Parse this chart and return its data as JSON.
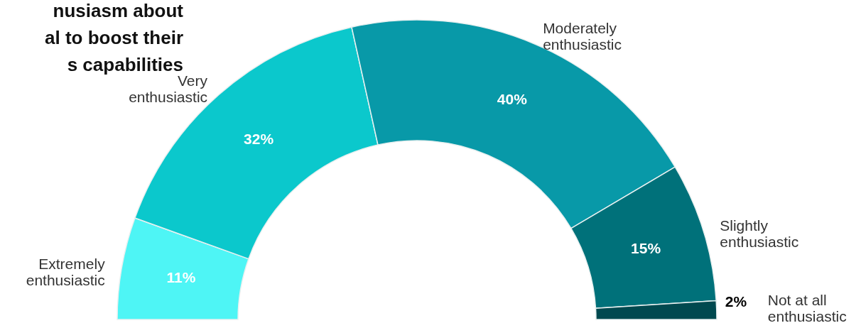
{
  "chart_data": {
    "type": "donut",
    "title": [
      "nusiasm about",
      "al to boost their",
      "s capabilities"
    ],
    "categories": [
      "Extremely\nenthusiastic",
      "Very\nenthusiastic",
      "Moderately\nenthusiastic",
      "Slightly\nenthusiastic",
      "Not at all\nenthusiastic"
    ],
    "values": [
      11,
      32,
      40,
      15,
      2
    ],
    "colors": [
      "#4ef5f5",
      "#0bc8cc",
      "#0899a8",
      "#00717a",
      "#00494f"
    ],
    "value_labels": [
      "11%",
      "32%",
      "40%",
      "15%",
      "2%"
    ]
  }
}
